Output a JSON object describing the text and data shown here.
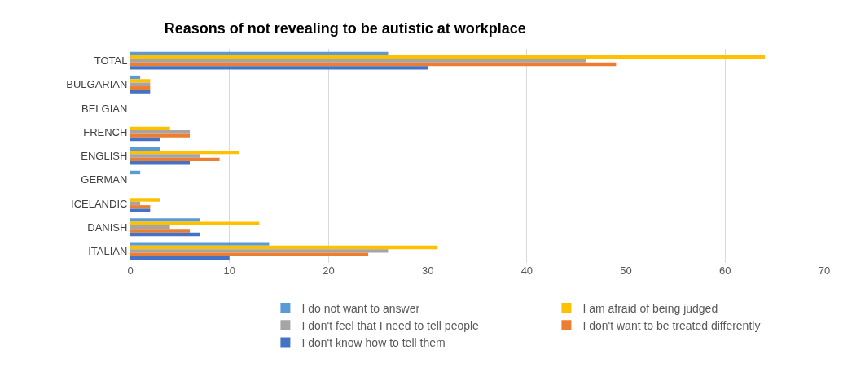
{
  "chart_data": {
    "type": "bar",
    "orientation": "horizontal",
    "title": "Reasons of not revealing to be autistic at workplace",
    "categories": [
      "TOTAL",
      "BULGARIAN",
      "BELGIAN",
      "FRENCH",
      "ENGLISH",
      "GERMAN",
      "ICELANDIC",
      "DANISH",
      "ITALIAN"
    ],
    "series": [
      {
        "name": "I do not want to answer",
        "color": "#5b9bd5",
        "values": [
          26,
          1,
          0,
          0,
          3,
          1,
          0,
          7,
          14
        ]
      },
      {
        "name": "I am afraid of being judged",
        "color": "#ffc000",
        "values": [
          64,
          2,
          0,
          4,
          11,
          0,
          3,
          13,
          31
        ]
      },
      {
        "name": "I don't feel that I need to tell people",
        "color": "#a5a5a5",
        "values": [
          46,
          2,
          0,
          6,
          7,
          0,
          1,
          4,
          26
        ]
      },
      {
        "name": "I don't want to be treated differently",
        "color": "#ed7d31",
        "values": [
          49,
          2,
          0,
          6,
          9,
          0,
          2,
          6,
          24
        ]
      },
      {
        "name": "I don't know how to tell them",
        "color": "#4472c4",
        "values": [
          30,
          2,
          0,
          3,
          6,
          0,
          2,
          7,
          10
        ]
      }
    ],
    "xlim": [
      0,
      70
    ],
    "xticks": [
      0,
      10,
      20,
      30,
      40,
      50,
      60,
      70
    ],
    "grid": "x",
    "legend": "bottom"
  }
}
